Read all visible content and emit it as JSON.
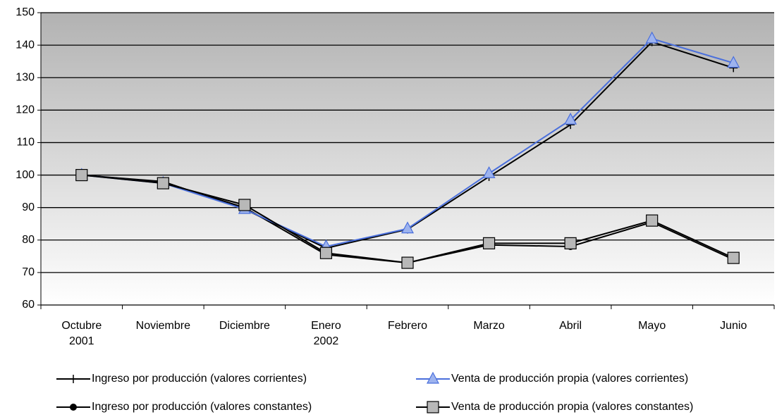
{
  "chart_data": {
    "type": "line",
    "categories": [
      "Octubre\n2001",
      "Noviembre",
      "Diciembre",
      "Enero\n2002",
      "Febrero",
      "Marzo",
      "Abril",
      "Mayo",
      "Junio"
    ],
    "series": [
      {
        "name": "Ingreso por producción (valores corrientes)",
        "color": "#000000",
        "marker": "plus",
        "values": [
          100,
          98,
          89.5,
          77.5,
          83.3,
          99.5,
          115.5,
          141,
          133
        ]
      },
      {
        "name": "Venta de producción propia (valores corrientes)",
        "color": "#4a6fdc",
        "marker": "triangle",
        "values": [
          100,
          97.5,
          89.5,
          78,
          83.5,
          100.5,
          117,
          142,
          134.5
        ]
      },
      {
        "name": "Ingreso por producción (valores constantes)",
        "color": "#000000",
        "marker": "circle",
        "values": [
          100,
          97.8,
          90,
          75.5,
          73,
          78.5,
          78,
          85.5,
          74
        ]
      },
      {
        "name": "Venta de producción propia (valores constantes)",
        "color": "#000000",
        "marker": "square",
        "values": [
          100,
          97.5,
          90.8,
          76,
          73,
          79,
          79,
          86,
          74.5
        ]
      }
    ],
    "ylim": [
      60,
      150
    ],
    "yticks": [
      60,
      70,
      80,
      90,
      100,
      110,
      120,
      130,
      140,
      150
    ],
    "grid": true,
    "legend": "bottom"
  }
}
